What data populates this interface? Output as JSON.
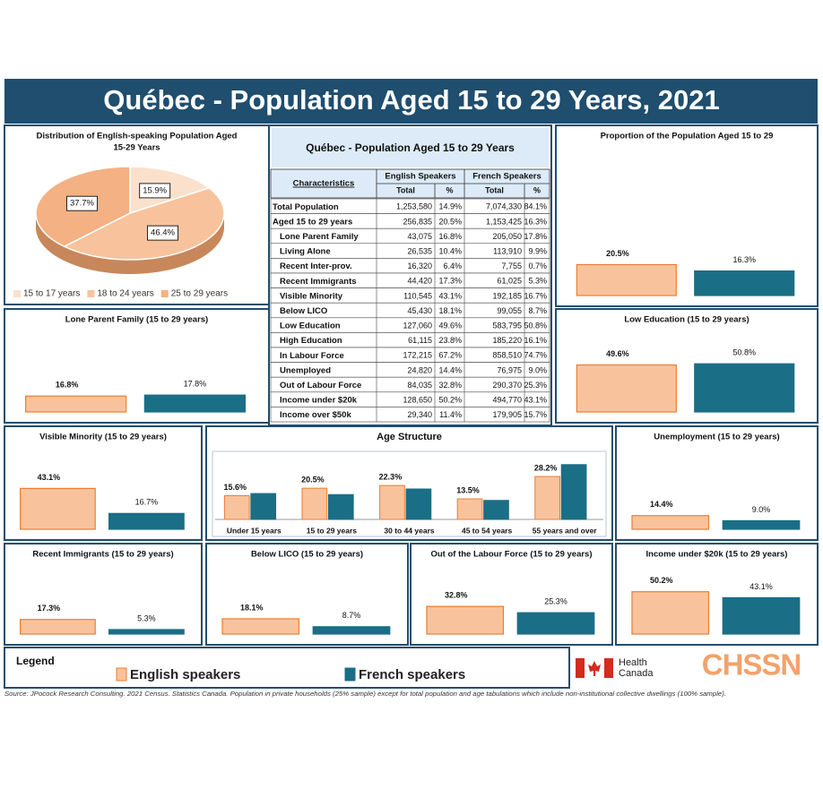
{
  "title": "Québec - Population Aged 15 to 29 Years, 2021",
  "chart_data": [
    {
      "type": "pie",
      "title": [
        "Distribution of English-speaking  Population Aged",
        "15-29 Years"
      ],
      "categories": [
        "15 to 17 years",
        "18 to 24 years",
        "25 to 29 years"
      ],
      "values": [
        15.9,
        46.4,
        37.7
      ],
      "value_labels": [
        "15.9%",
        "46.4%",
        "37.7%"
      ],
      "colors": [
        "#fbe0cc",
        "#f8c39c",
        "#f4b183"
      ]
    },
    {
      "type": "bar",
      "title": "Proportion of the Population  Aged 15 to 29",
      "values": [
        20.5,
        16.3
      ],
      "value_labels": [
        "20.5%",
        "16.3%"
      ],
      "ylim": [
        0,
        60
      ]
    },
    {
      "type": "bar",
      "title": "Lone Parent Family (15 to 29 years)",
      "values": [
        16.8,
        17.8
      ],
      "value_labels": [
        "16.8%",
        "17.8%"
      ],
      "ylim": [
        0,
        60
      ]
    },
    {
      "type": "bar",
      "title": "Low Education  (15 to 29 years)",
      "values": [
        49.6,
        50.8
      ],
      "value_labels": [
        "49.6%",
        "50.8%"
      ],
      "ylim": [
        0,
        60
      ]
    },
    {
      "type": "bar",
      "title": "Visible Minority  (15 to 29 years)",
      "values": [
        43.1,
        16.7
      ],
      "value_labels": [
        "43.1%",
        "16.7%"
      ],
      "ylim": [
        0,
        60
      ]
    },
    {
      "type": "bar",
      "title": "Age Structure",
      "categories": [
        "Under 15 years",
        "15 to 29 years",
        "30 to 44 years",
        "45 to 54 years",
        "55 years and over"
      ],
      "series": [
        {
          "values": [
            15.6,
            20.5,
            22.3,
            13.5,
            28.2
          ],
          "value_labels": [
            "15.6%",
            "20.5%",
            "22.3%",
            "13.5%",
            "28.2%"
          ]
        },
        {
          "values": [
            17.0,
            16.3,
            20.0,
            12.5,
            36.0
          ]
        }
      ],
      "ylim": [
        0,
        40
      ]
    },
    {
      "type": "bar",
      "title": "Unemployment  (15 to 29 years)",
      "values": [
        14.4,
        9.0
      ],
      "value_labels": [
        "14.4%",
        "9.0%"
      ],
      "ylim": [
        0,
        60
      ]
    },
    {
      "type": "bar",
      "title": "Recent Immigrants (15 to 29 years)",
      "values": [
        17.3,
        5.3
      ],
      "value_labels": [
        "17.3%",
        "5.3%"
      ],
      "ylim": [
        0,
        60
      ]
    },
    {
      "type": "bar",
      "title": "Below LICO  (15 to 29 years)",
      "values": [
        18.1,
        8.7
      ],
      "value_labels": [
        "18.1%",
        "8.7%"
      ],
      "ylim": [
        0,
        60
      ]
    },
    {
      "type": "bar",
      "title": "Out of the Labour Force  (15 to 29 years)",
      "values": [
        32.8,
        25.3
      ],
      "value_labels": [
        "32.8%",
        "25.3%"
      ],
      "ylim": [
        0,
        60
      ]
    },
    {
      "type": "bar",
      "title": "Income under $20k  (15 to 29 years)",
      "values": [
        50.2,
        43.1
      ],
      "value_labels": [
        "50.2%",
        "43.1%"
      ],
      "ylim": [
        0,
        60
      ]
    }
  ],
  "table": {
    "title": "Québec - Population Aged 15 to 29 Years",
    "columns": [
      "Characteristics",
      "English Speakers",
      "French Speakers"
    ],
    "subcolumns": [
      "Total",
      "%",
      "Total",
      "%"
    ],
    "rows": [
      [
        "Total Population",
        "1,253,580",
        "14.9%",
        "7,074,330",
        "84.1%"
      ],
      [
        "Aged 15 to 29 years",
        "256,835",
        "20.5%",
        "1,153,425",
        "16.3%"
      ],
      [
        "Lone Parent Family",
        "43,075",
        "16.8%",
        "205,050",
        "17.8%"
      ],
      [
        "Living Alone",
        "26,535",
        "10.4%",
        "113,910",
        "9.9%"
      ],
      [
        "Recent Inter-prov.",
        "16,320",
        "6.4%",
        "7,755",
        "0.7%"
      ],
      [
        "Recent Immigrants",
        "44,420",
        "17.3%",
        "61,025",
        "5.3%"
      ],
      [
        "Visible Minority",
        "110,545",
        "43.1%",
        "192,185",
        "16.7%"
      ],
      [
        "Below LICO",
        "45,430",
        "18.1%",
        "99,055",
        "8.7%"
      ],
      [
        "Low Education",
        "127,060",
        "49.6%",
        "583,795",
        "50.8%"
      ],
      [
        "High Education",
        "61,115",
        "23.8%",
        "185,220",
        "16.1%"
      ],
      [
        "In Labour Force",
        "172,215",
        "67.2%",
        "858,510",
        "74.7%"
      ],
      [
        "Unemployed",
        "24,820",
        "14.4%",
        "76,975",
        "9.0%"
      ],
      [
        "Out of Labour Force",
        "84,035",
        "32.8%",
        "290,370",
        "25.3%"
      ],
      [
        "Income under $20k",
        "128,650",
        "50.2%",
        "494,770",
        "43.1%"
      ],
      [
        "Income over $50k",
        "29,340",
        "11.4%",
        "179,905",
        "15.7%"
      ]
    ]
  },
  "legend": {
    "title": "Legend",
    "items": [
      {
        "name": "English speakers",
        "color": "#f8c39c"
      },
      {
        "name": "French speakers",
        "color": "#1a6e86"
      }
    ]
  },
  "logos": {
    "health": [
      "Health",
      "Canada"
    ],
    "chssn": "CHSSN"
  },
  "source": "Source: JPocock Research Consulting. 2021 Census. Statistics Canada. Population in private households (25% sample) except for total population and age tabulations which include non-institutional collective dwellings (100% sample)."
}
